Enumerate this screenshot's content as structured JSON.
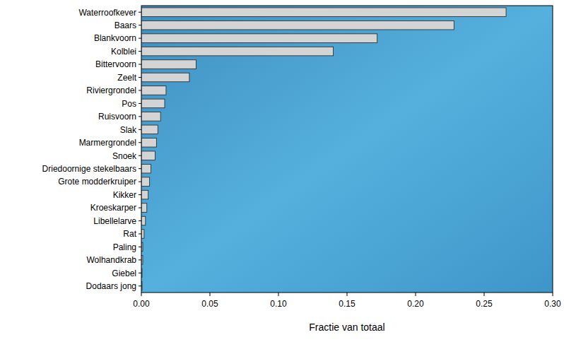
{
  "chart_data": {
    "type": "bar",
    "orientation": "horizontal",
    "xlabel": "Fractie van totaal",
    "categories": [
      "Waterroofkever",
      "Baars",
      "Blankvoorn",
      "Kolblei",
      "Bittervoorn",
      "Zeelt",
      "Riviergrondel",
      "Pos",
      "Ruisvoorn",
      "Slak",
      "Marmergrondel",
      "Snoek",
      "Driedoornige stekelbaars",
      "Grote modderkruiper",
      "Kikker",
      "Kroeskarper",
      "Libellelarve",
      "Rat",
      "Paling",
      "Wolhandkrab",
      "Giebel",
      "Dodaars jong"
    ],
    "values": [
      0.266,
      0.228,
      0.172,
      0.14,
      0.04,
      0.035,
      0.018,
      0.017,
      0.014,
      0.012,
      0.011,
      0.01,
      0.007,
      0.006,
      0.005,
      0.004,
      0.003,
      0.002,
      0.001,
      0.001,
      0.0005,
      0.0005
    ],
    "color": "#d4d4d4",
    "xlim": [
      0,
      0.3
    ],
    "xticks": [
      {
        "value": 0,
        "label": "0.00"
      },
      {
        "value": 0.05,
        "label": "0.05"
      },
      {
        "value": 0.1,
        "label": "0.10"
      },
      {
        "value": 0.15,
        "label": "0.15"
      },
      {
        "value": 0.2,
        "label": "0.20"
      },
      {
        "value": 0.25,
        "label": "0.25"
      },
      {
        "value": 0.3,
        "label": "0.30"
      }
    ],
    "grid": false
  }
}
